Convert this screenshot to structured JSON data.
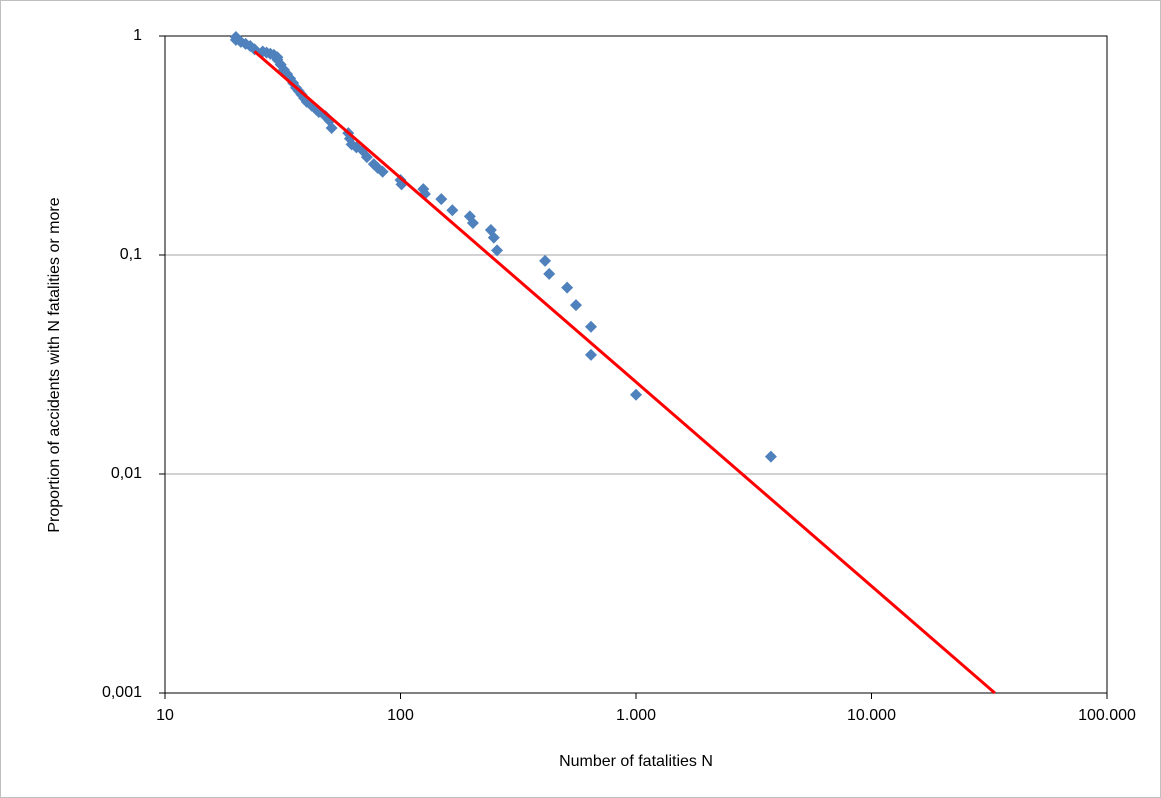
{
  "chart_data": {
    "type": "scatter",
    "xlabel": "Number of fatalities N",
    "ylabel": "Proportion of accidents with N fatalities or more",
    "log_x": true,
    "log_y": true,
    "grid": true,
    "xlim": [
      10,
      100000
    ],
    "xticks": [
      10,
      100,
      {
        "value": 1000,
        "label": "1.000"
      },
      {
        "value": 10000,
        "label": "10.000"
      },
      {
        "value": 100000,
        "label": "100.000"
      }
    ],
    "ylim": [
      0.001,
      1
    ],
    "yticks": [
      {
        "value": 0.001,
        "label": "0,001"
      },
      {
        "value": 0.01,
        "label": "0,01"
      },
      {
        "value": 0.1,
        "label": "0,1"
      },
      1
    ],
    "series": [
      {
        "type": "scatter",
        "color": "#4f81bd",
        "x": [
          20,
          20,
          21,
          22,
          23,
          24,
          26,
          27,
          28,
          29,
          30,
          30,
          31,
          32,
          33,
          34,
          35,
          36,
          37,
          38,
          39,
          40,
          42,
          44,
          45,
          48,
          50,
          51,
          60,
          61,
          62,
          65,
          69,
          72,
          77,
          80,
          84,
          100,
          101,
          125,
          127,
          149,
          166,
          197,
          203,
          242,
          249,
          257,
          411,
          428,
          510,
          556,
          644,
          644,
          1000,
          3740
        ],
        "values": [
          0.99,
          0.96,
          0.94,
          0.92,
          0.9,
          0.87,
          0.85,
          0.84,
          0.83,
          0.82,
          0.8,
          0.78,
          0.74,
          0.7,
          0.67,
          0.64,
          0.61,
          0.58,
          0.56,
          0.54,
          0.52,
          0.5,
          0.48,
          0.46,
          0.45,
          0.43,
          0.41,
          0.38,
          0.36,
          0.34,
          0.32,
          0.31,
          0.3,
          0.28,
          0.26,
          0.25,
          0.24,
          0.22,
          0.21,
          0.2,
          0.19,
          0.18,
          0.16,
          0.15,
          0.14,
          0.13,
          0.12,
          0.105,
          0.094,
          0.082,
          0.071,
          0.059,
          0.047,
          0.035,
          0.023,
          0.012
        ]
      },
      {
        "type": "line",
        "color": "#ff0000",
        "x": [
          24,
          33400
        ],
        "values": [
          0.85,
          0.001
        ]
      }
    ]
  }
}
